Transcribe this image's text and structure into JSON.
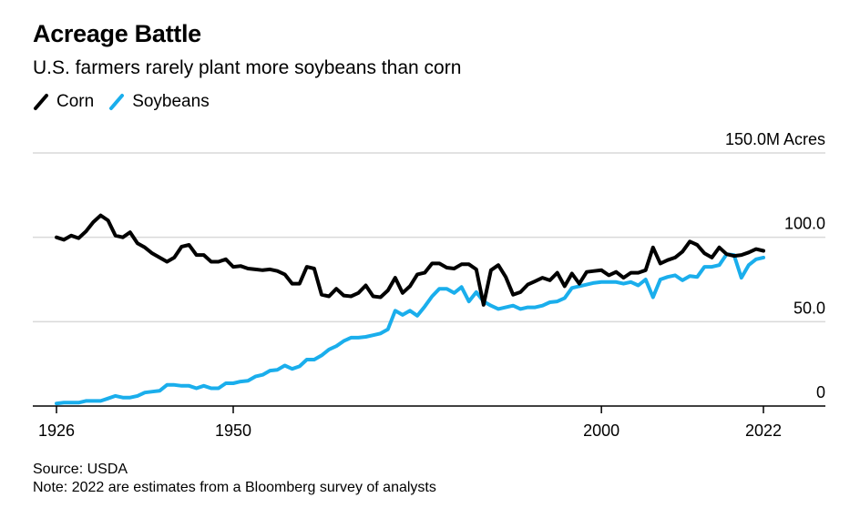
{
  "header": {
    "title": "Acreage Battle",
    "subtitle": "U.S. farmers rarely plant more soybeans than corn"
  },
  "footer": {
    "source": "Source: USDA",
    "note": "Note: 2022 are estimates from a Bloomberg survey of analysts"
  },
  "colors": {
    "corn": "#000000",
    "soybeans": "#1aaeec",
    "grid": "#d9d9d9",
    "axis": "#000000"
  },
  "chart_data": {
    "type": "line",
    "title": "Acreage Battle",
    "subtitle": "U.S. farmers rarely plant more soybeans than corn",
    "unit_label": "150.0M Acres",
    "ylim": [
      0,
      150
    ],
    "xlim": [
      1925,
      2030
    ],
    "y_ticks": [
      {
        "value": 150,
        "label": "150.0M Acres"
      },
      {
        "value": 100,
        "label": "100.0"
      },
      {
        "value": 50,
        "label": "50.0"
      },
      {
        "value": 0,
        "label": "0"
      }
    ],
    "x_ticks": [
      {
        "value": 1926,
        "label": "1926"
      },
      {
        "value": 1950,
        "label": "1950"
      },
      {
        "value": 2000,
        "label": "2000"
      },
      {
        "value": 2022,
        "label": "2022"
      }
    ],
    "legend": {
      "placement": "top-left",
      "entries": [
        "Corn",
        "Soybeans"
      ]
    },
    "series": [
      {
        "name": "Corn",
        "x": [
          1926,
          1927,
          1928,
          1929,
          1930,
          1931,
          1932,
          1933,
          1934,
          1935,
          1936,
          1937,
          1938,
          1939,
          1940,
          1941,
          1942,
          1943,
          1944,
          1945,
          1946,
          1947,
          1948,
          1949,
          1950,
          1951,
          1952,
          1953,
          1954,
          1955,
          1956,
          1957,
          1958,
          1959,
          1960,
          1961,
          1962,
          1963,
          1964,
          1965,
          1966,
          1967,
          1968,
          1969,
          1970,
          1971,
          1972,
          1973,
          1974,
          1975,
          1976,
          1977,
          1978,
          1979,
          1980,
          1981,
          1982,
          1983,
          1984,
          1985,
          1986,
          1987,
          1988,
          1989,
          1990,
          1991,
          1992,
          1993,
          1994,
          1995,
          1996,
          1997,
          1998,
          1999,
          2000,
          2001,
          2002,
          2003,
          2004,
          2005,
          2006,
          2007,
          2008,
          2009,
          2010,
          2011,
          2012,
          2013,
          2014,
          2015,
          2016,
          2017,
          2018,
          2019,
          2020,
          2021,
          2022
        ],
        "values": [
          100,
          98.5,
          101,
          99.5,
          103.5,
          109,
          113,
          110,
          101,
          100,
          103,
          96.5,
          94,
          90.5,
          88,
          85.5,
          88,
          94.5,
          95.5,
          89.5,
          89.5,
          85.5,
          85.5,
          87,
          82.5,
          83,
          81.5,
          81,
          80.5,
          81,
          80,
          78,
          72.5,
          72.5,
          82.5,
          81.5,
          66,
          65,
          69.5,
          65.5,
          65,
          67,
          71.5,
          65,
          64.5,
          68.5,
          76,
          67,
          71,
          78,
          79,
          84.5,
          84.5,
          82,
          81.5,
          84,
          84,
          81,
          60,
          80.5,
          83.5,
          76.5,
          66,
          67.5,
          72,
          74,
          76,
          74.5,
          79,
          71,
          78.5,
          72.5,
          79.5,
          80,
          80.5,
          77.5,
          79.5,
          76,
          79,
          79,
          80.5,
          94,
          84.5,
          86.5,
          88,
          91.5,
          97.5,
          95.5,
          90.5,
          88,
          94,
          90,
          89,
          89.5,
          91,
          93,
          92
        ]
      },
      {
        "name": "Soybeans",
        "x": [
          1926,
          1927,
          1928,
          1929,
          1930,
          1931,
          1932,
          1933,
          1934,
          1935,
          1936,
          1937,
          1938,
          1939,
          1940,
          1941,
          1942,
          1943,
          1944,
          1945,
          1946,
          1947,
          1948,
          1949,
          1950,
          1951,
          1952,
          1953,
          1954,
          1955,
          1956,
          1957,
          1958,
          1959,
          1960,
          1961,
          1962,
          1963,
          1964,
          1965,
          1966,
          1967,
          1968,
          1969,
          1970,
          1971,
          1972,
          1973,
          1974,
          1975,
          1976,
          1977,
          1978,
          1979,
          1980,
          1981,
          1982,
          1983,
          1984,
          1985,
          1986,
          1987,
          1988,
          1989,
          1990,
          1991,
          1992,
          1993,
          1994,
          1995,
          1996,
          1997,
          1998,
          1999,
          2000,
          2001,
          2002,
          2003,
          2004,
          2005,
          2006,
          2007,
          2008,
          2009,
          2010,
          2011,
          2012,
          2013,
          2014,
          2015,
          2016,
          2017,
          2018,
          2019,
          2020,
          2021,
          2022
        ],
        "values": [
          1.5,
          2,
          2,
          2,
          3,
          3,
          3,
          4.5,
          6,
          5,
          5,
          6,
          8,
          8.5,
          9,
          12.5,
          12.5,
          12,
          12,
          10.5,
          12,
          10.5,
          10.5,
          13.5,
          13.5,
          14.5,
          15,
          17.5,
          18.5,
          21,
          21.5,
          24,
          22,
          23.5,
          27.5,
          27.5,
          30,
          33.5,
          35.5,
          38.5,
          40.5,
          40.5,
          41,
          42,
          43,
          45.5,
          56.5,
          54,
          56.5,
          53.5,
          59,
          65,
          69.5,
          69.5,
          67,
          70.5,
          62,
          67.5,
          62,
          59.5,
          57.5,
          58.5,
          59.5,
          57.5,
          58.5,
          58.5,
          59.5,
          61.5,
          62,
          64,
          70,
          71,
          72,
          73,
          73.5,
          73.5,
          73.5,
          72.5,
          73.5,
          71.5,
          75,
          64.5,
          75,
          76.5,
          77.5,
          74.5,
          77,
          76.5,
          82.5,
          82.5,
          83.5,
          90,
          89.5,
          76,
          83.5,
          87,
          88
        ]
      }
    ]
  }
}
